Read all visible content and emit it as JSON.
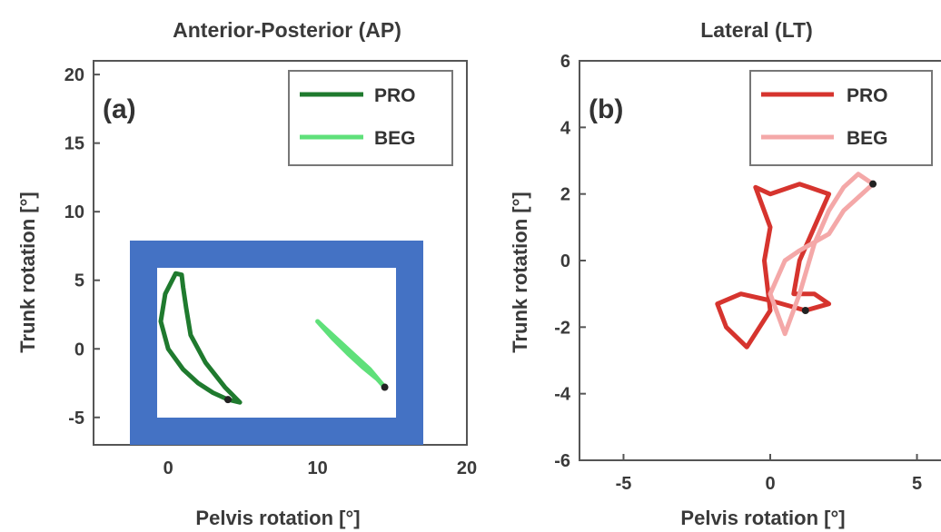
{
  "chart_data": [
    {
      "type": "line",
      "panel_label": "(a)",
      "title": "Anterior-Posterior (AP)",
      "xlabel": "Pelvis rotation [°]",
      "ylabel": "Trunk rotation [°]",
      "xlim": [
        -5,
        20
      ],
      "ylim": [
        -7,
        21
      ],
      "xticks": [
        0,
        10,
        20
      ],
      "yticks": [
        -5,
        0,
        5,
        10,
        15,
        20
      ],
      "legend_position": "top-right",
      "grid": false,
      "series": [
        {
          "name": "PRO",
          "color": "#1f7a2e",
          "x": [
            0.5,
            -0.2,
            -0.5,
            0.0,
            1.0,
            2.0,
            3.0,
            4.0,
            4.8,
            3.8,
            2.5,
            1.5,
            1.2,
            1.0,
            0.9,
            0.5
          ],
          "y": [
            5.5,
            4.0,
            2.0,
            0.0,
            -1.5,
            -2.5,
            -3.2,
            -3.7,
            -3.9,
            -2.8,
            -1.0,
            1.0,
            3.0,
            4.5,
            5.4,
            5.5
          ]
        },
        {
          "name": "BEG",
          "color": "#5fe07a",
          "x": [
            10.0,
            11.0,
            12.0,
            13.0,
            14.0,
            14.5,
            13.5,
            12.5,
            11.5,
            10.5,
            10.0
          ],
          "y": [
            2.0,
            0.8,
            -0.3,
            -1.3,
            -2.2,
            -2.8,
            -1.5,
            -0.5,
            0.5,
            1.5,
            2.0
          ]
        }
      ]
    },
    {
      "type": "line",
      "panel_label": "(b)",
      "title": "Lateral (LT)",
      "xlabel": "Pelvis rotation [°]",
      "ylabel": "Trunk rotation [°]",
      "xlim": [
        -6.5,
        6.5
      ],
      "ylim": [
        -6,
        6
      ],
      "xticks": [
        -5,
        0,
        5
      ],
      "yticks": [
        -6,
        -4,
        -2,
        0,
        2,
        4,
        6
      ],
      "legend_position": "top-right",
      "grid": false,
      "series": [
        {
          "name": "PRO",
          "color": "#d6342e",
          "x": [
            -0.5,
            0.0,
            1.0,
            2.0,
            1.5,
            1.0,
            0.8,
            1.5,
            2.0,
            1.2,
            0.0,
            -1.0,
            -1.8,
            -1.5,
            -0.8,
            0.0,
            -0.2,
            0.0,
            -0.5
          ],
          "y": [
            2.2,
            2.0,
            2.3,
            2.0,
            1.0,
            0.0,
            -1.0,
            -1.0,
            -1.3,
            -1.5,
            -1.2,
            -1.0,
            -1.3,
            -2.0,
            -2.6,
            -1.5,
            0.0,
            1.0,
            2.2
          ]
        },
        {
          "name": "BEG",
          "color": "#f4a8a8",
          "x": [
            0.5,
            1.0,
            1.5,
            2.0,
            2.5,
            3.0,
            3.5,
            2.5,
            2.0,
            1.0,
            0.5,
            0.0,
            0.5
          ],
          "y": [
            -2.2,
            -1.0,
            0.5,
            1.5,
            2.2,
            2.6,
            2.3,
            1.5,
            0.8,
            0.3,
            0.0,
            -1.0,
            -2.2
          ]
        }
      ]
    }
  ],
  "colors": {
    "highlight_box": "#4472c4",
    "axis": "#555555"
  }
}
